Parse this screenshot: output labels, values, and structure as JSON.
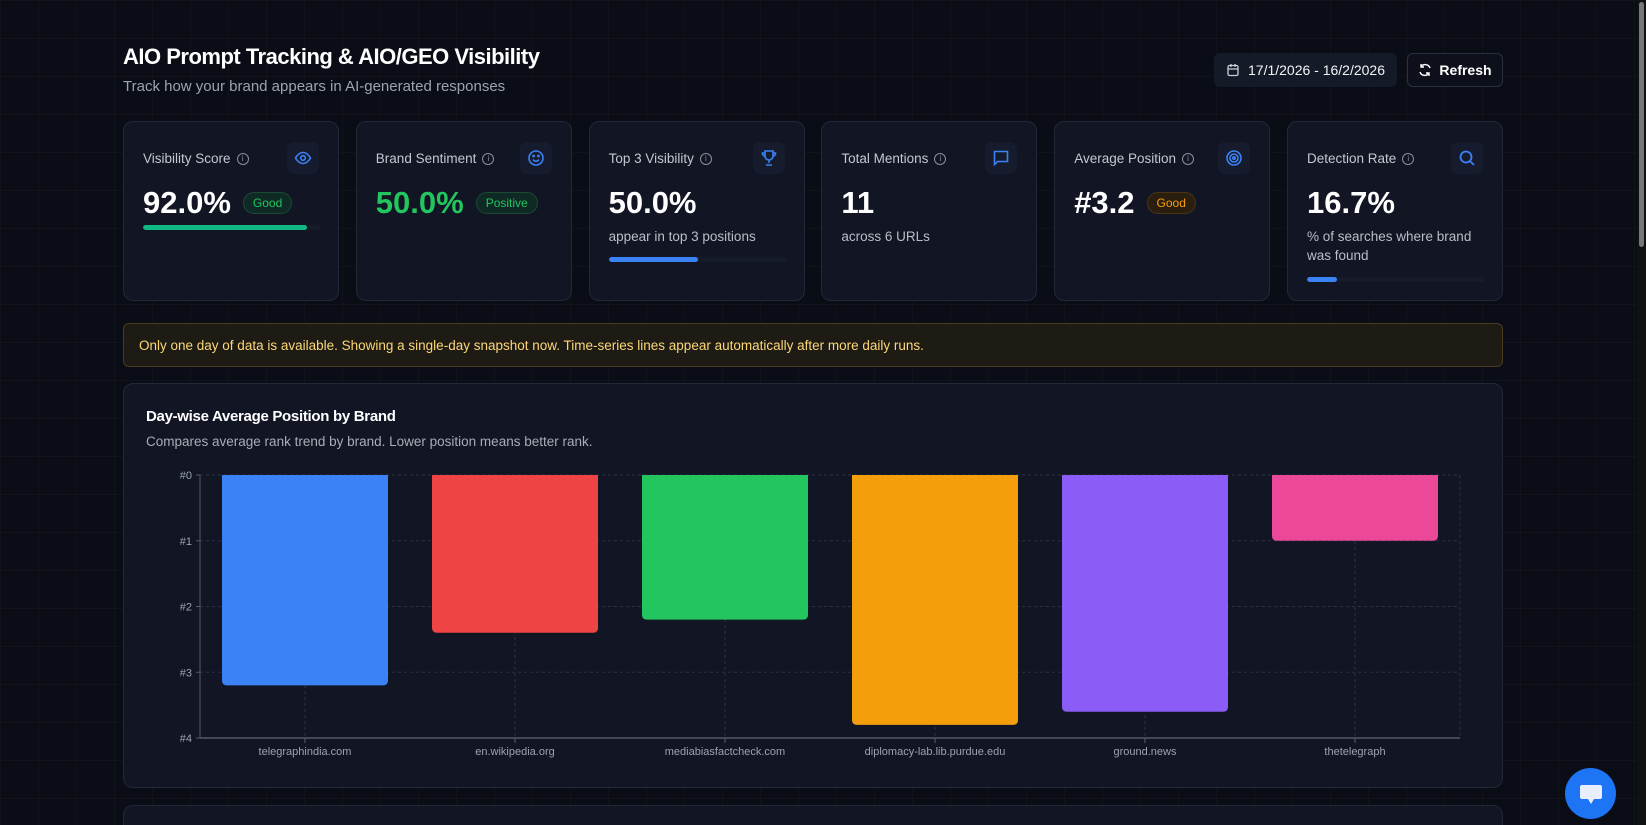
{
  "header": {
    "title": "AIO Prompt Tracking & AIO/GEO Visibility",
    "subtitle": "Track how your brand appears in AI-generated responses",
    "date_range": "17/1/2026 - 16/2/2026",
    "refresh_label": "Refresh"
  },
  "cards": [
    {
      "label": "Visibility Score",
      "value": "92.0%",
      "badge": "Good",
      "progress": 0.92,
      "icon": "eye-icon"
    },
    {
      "label": "Brand Sentiment",
      "value": "50.0%",
      "badge": "Positive",
      "icon": "smile-icon"
    },
    {
      "label": "Top 3 Visibility",
      "value": "50.0%",
      "desc": "appear in top 3 positions",
      "progress": 0.5,
      "icon": "trophy-icon"
    },
    {
      "label": "Total Mentions",
      "value": "11",
      "desc": "across 6 URLs",
      "icon": "message-icon"
    },
    {
      "label": "Average Position",
      "value": "#3.2",
      "badge": "Good",
      "icon": "target-icon"
    },
    {
      "label": "Detection Rate",
      "value": "16.7%",
      "desc": "% of searches where brand was found",
      "progress": 0.167,
      "icon": "search-icon"
    }
  ],
  "banner": "Only one day of data is available. Showing a single-day snapshot now. Time-series lines appear automatically after more daily runs.",
  "chart_data": {
    "type": "bar",
    "title": "Day-wise Average Position by Brand",
    "subtitle": "Compares average rank trend by brand. Lower position means better rank.",
    "categories": [
      "telegraphindia.com",
      "en.wikipedia.org",
      "mediabiasfactcheck.com",
      "diplomacy-lab.lib.purdue.edu",
      "ground.news",
      "thetelegraph"
    ],
    "values": [
      3.2,
      2.4,
      2.2,
      3.8,
      3.6,
      1.0
    ],
    "colors": [
      "#3b82f6",
      "#ef4444",
      "#22c55e",
      "#f59e0b",
      "#8b5cf6",
      "#ec4899"
    ],
    "ylim": [
      0,
      4
    ],
    "y_reversed": true,
    "yticks": [
      "#0",
      "#1",
      "#2",
      "#3",
      "#4"
    ],
    "grid": true
  },
  "colors": {
    "accent": "#3b82f6",
    "positive": "#22c55e",
    "warning": "#f59e0b",
    "progress_green": "#10b981"
  }
}
